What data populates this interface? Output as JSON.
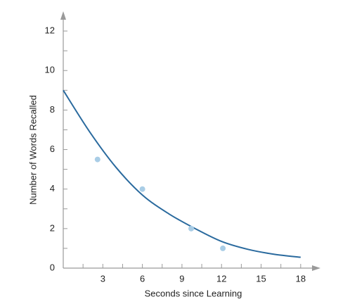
{
  "chart_data": {
    "type": "scatter",
    "x_label": "Seconds since Learning",
    "y_label": "Number of Words Recalled",
    "points": {
      "x": [
        2.6,
        6.0,
        9.7,
        12.1
      ],
      "y": [
        5.5,
        4.0,
        2.0,
        1.0
      ],
      "color": "#a9cde6"
    },
    "curve": {
      "x": [
        0,
        2,
        4,
        6,
        8,
        10,
        12,
        14,
        16,
        18
      ],
      "y": [
        9.0,
        6.9,
        5.1,
        3.7,
        2.75,
        2.0,
        1.35,
        0.95,
        0.7,
        0.55
      ],
      "color": "#2a6a9e"
    },
    "xlim": [
      0,
      19.5
    ],
    "ylim": [
      0,
      13
    ],
    "xticks": [
      3,
      6,
      9,
      12,
      15,
      18
    ],
    "xminorticks": [
      1.5,
      4.5,
      7.5,
      10.5,
      13.5,
      16.5
    ],
    "yticks": [
      0,
      2,
      4,
      6,
      8,
      10,
      12
    ],
    "yminorticks": [
      1,
      3,
      5,
      7,
      9,
      11
    ],
    "axis_color": "#9a9a9a"
  }
}
